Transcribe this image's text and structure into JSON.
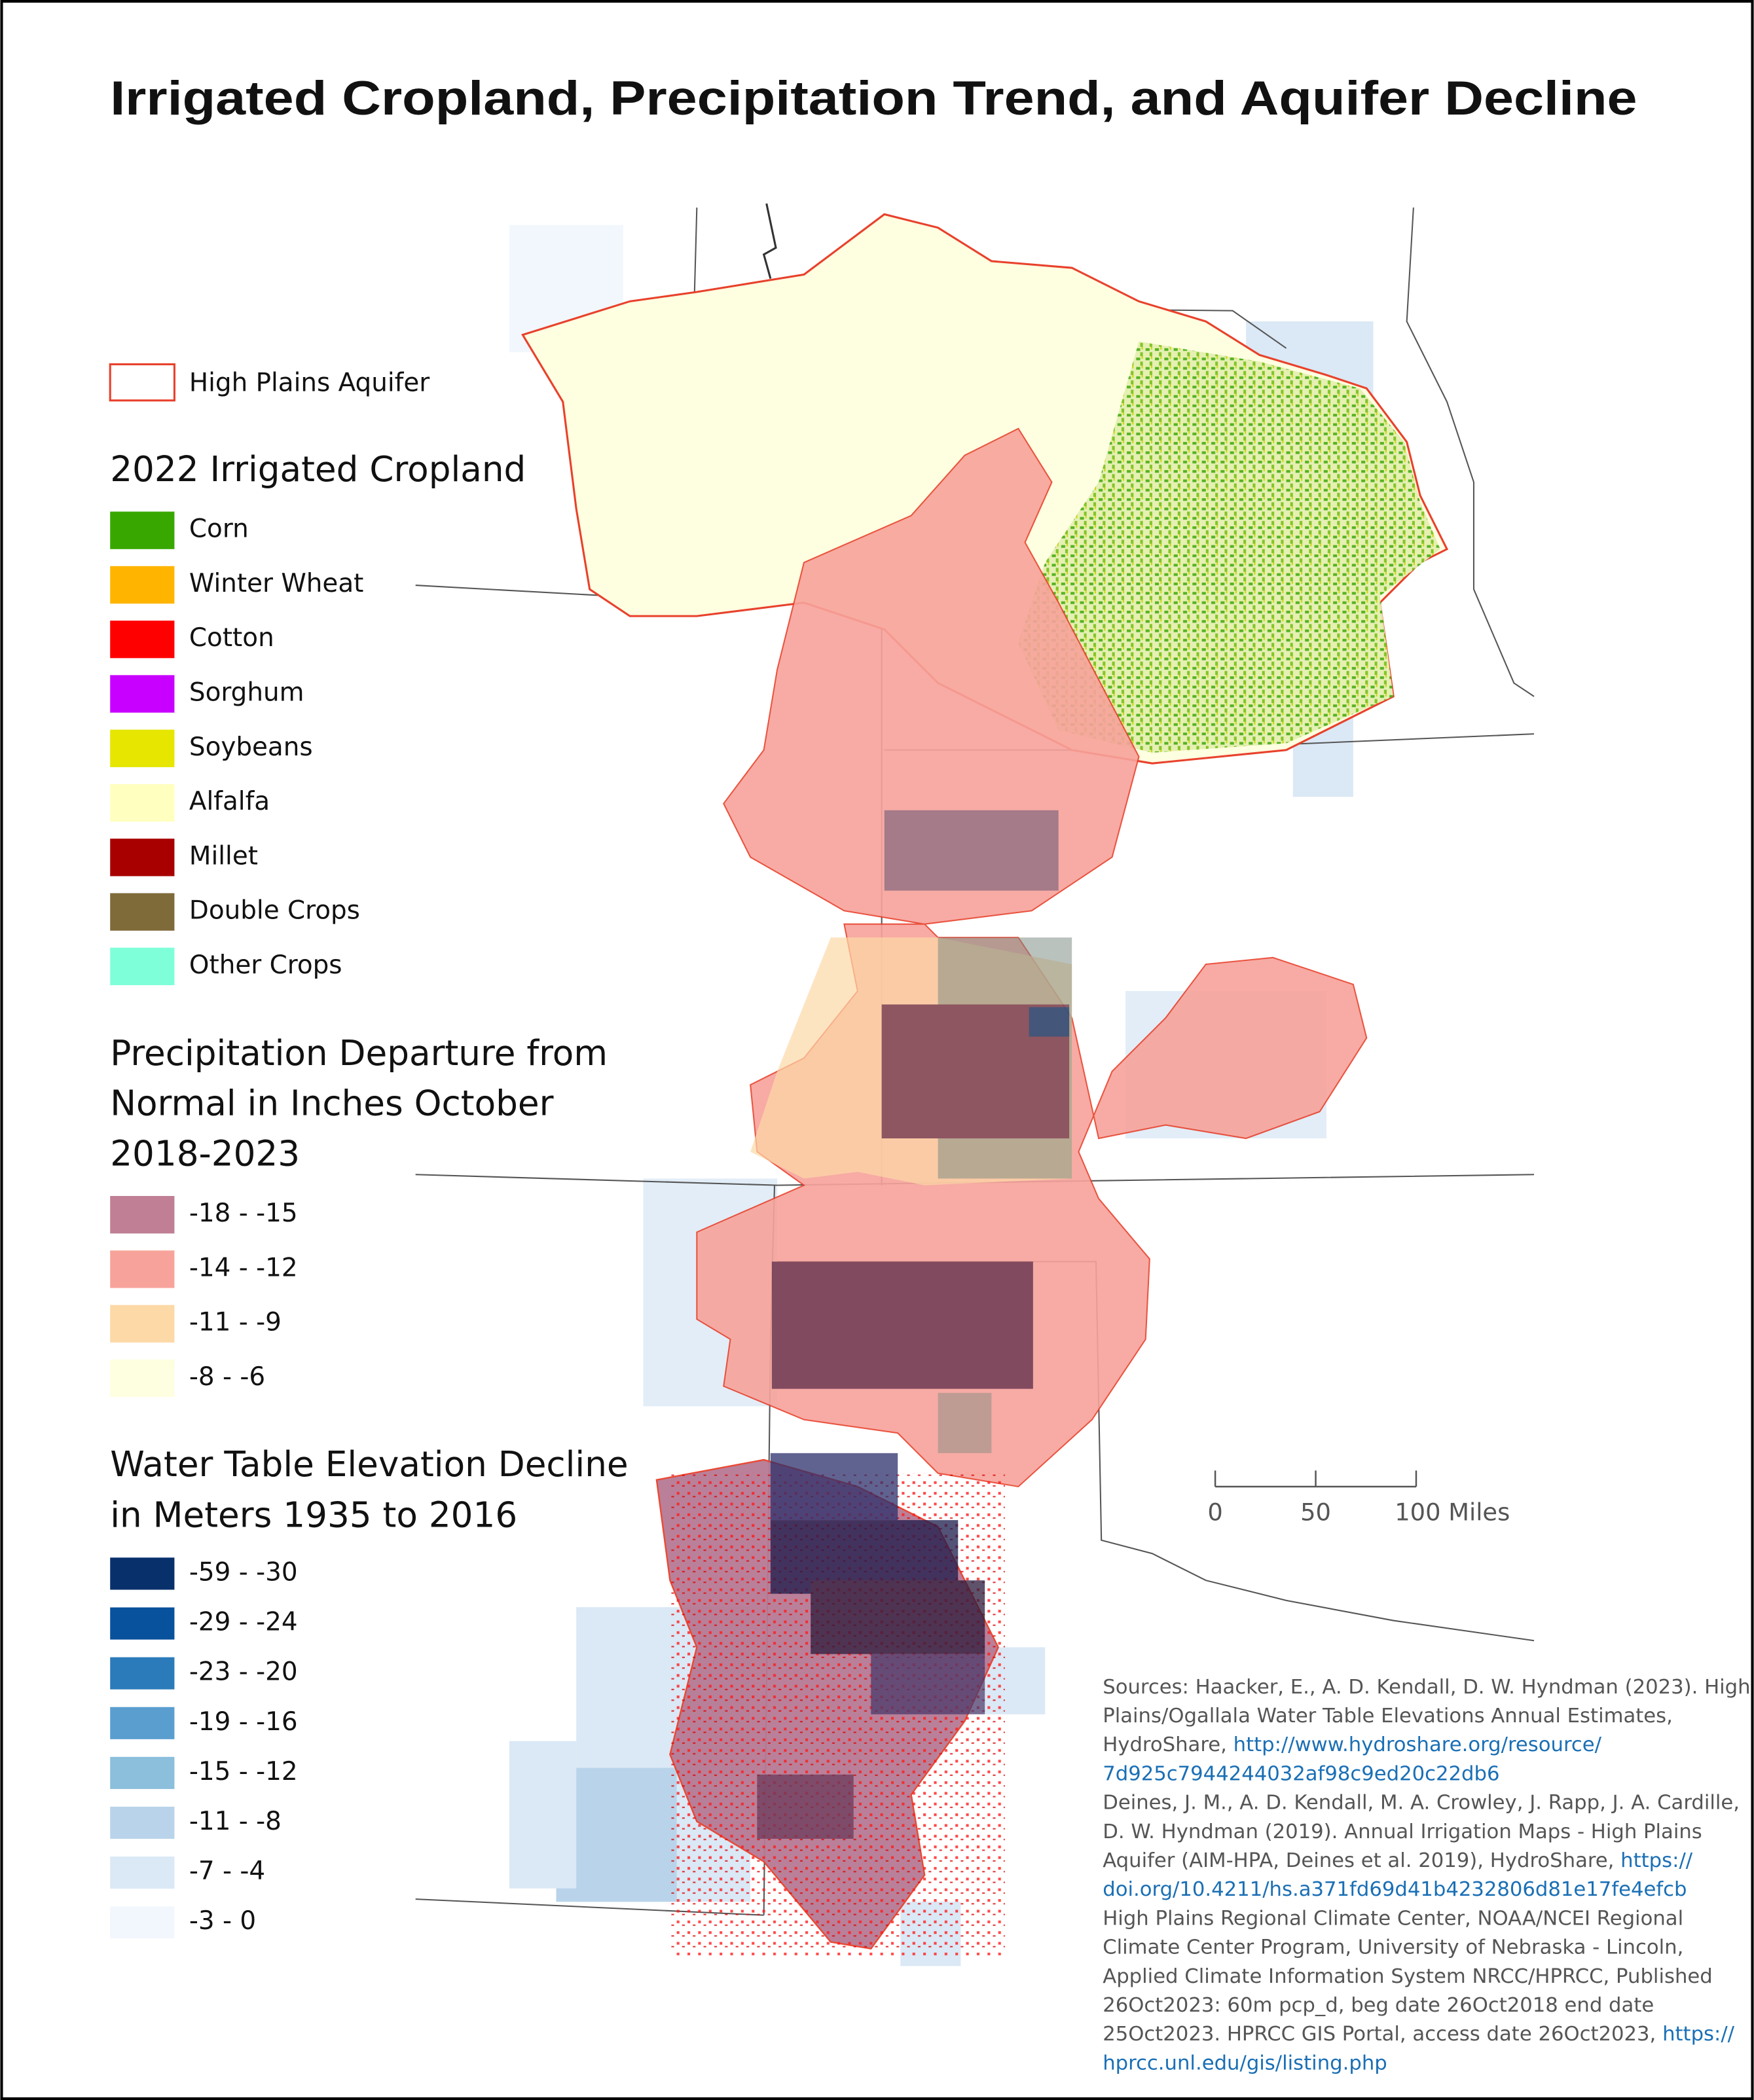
{
  "title": "Irrigated Cropland, Precipitation Trend, and Aquifer Decline",
  "legend": {
    "aquifer": {
      "label": "High Plains Aquifer",
      "color": "#e8412c"
    },
    "cropland": {
      "title": "2022 Irrigated Cropland",
      "items": [
        {
          "label": "Corn",
          "color": "#38a800"
        },
        {
          "label": "Winter Wheat",
          "color": "#ffb400"
        },
        {
          "label": "Cotton",
          "color": "#ff0000"
        },
        {
          "label": "Sorghum",
          "color": "#c800ff"
        },
        {
          "label": "Soybeans",
          "color": "#e6e600"
        },
        {
          "label": "Alfalfa",
          "color": "#ffffc0"
        },
        {
          "label": "Millet",
          "color": "#a80000"
        },
        {
          "label": "Double Crops",
          "color": "#7f6a3a"
        },
        {
          "label": "Other Crops",
          "color": "#7fffd9"
        }
      ]
    },
    "precipitation": {
      "title_lines": [
        "Precipitation Departure from",
        "Normal in Inches October",
        "2018-2023"
      ],
      "items": [
        {
          "label": "-18 - -15",
          "color": "#c07f94"
        },
        {
          "label": "-14 - -12",
          "color": "#f7a39b"
        },
        {
          "label": "-11 - -9",
          "color": "#fcd9a6"
        },
        {
          "label": "-8 - -6",
          "color": "#fefee0"
        }
      ]
    },
    "water_table": {
      "title_lines": [
        "Water Table Elevation Decline",
        "in Meters 1935 to 2016"
      ],
      "items": [
        {
          "label": "-59 - -30",
          "color": "#08306b"
        },
        {
          "label": "-29 - -24",
          "color": "#08519c"
        },
        {
          "label": "-23 - -20",
          "color": "#2b7bba"
        },
        {
          "label": "-19 - -16",
          "color": "#5a9ecf"
        },
        {
          "label": "-15 - -12",
          "color": "#8bbfdc"
        },
        {
          "label": "-11 - -8",
          "color": "#b9d4ea"
        },
        {
          "label": "-7 - -4",
          "color": "#dbe8f5"
        },
        {
          "label": "-3 - 0",
          "color": "#f2f7fd"
        }
      ]
    }
  },
  "scale_bar": {
    "labels": [
      "0",
      "50",
      "100 Miles"
    ]
  },
  "sources": {
    "lines": [
      [
        {
          "text": "Sources: Haacker, E., A. D. Kendall, D. W. Hyndman (2023). High"
        }
      ],
      [
        {
          "text": "Plains/Ogallala Water Table Elevations Annual Estimates,"
        }
      ],
      [
        {
          "text": "HydroShare, "
        },
        {
          "link": "http://www.hydroshare.org/resource/"
        }
      ],
      [
        {
          "link": "7d925c7944244032af98c9ed20c22db6"
        }
      ],
      [
        {
          "text": "Deines, J. M., A. D. Kendall, M. A. Crowley, J. Rapp, J. A. Cardille,"
        }
      ],
      [
        {
          "text": "D. W. Hyndman (2019). Annual Irrigation Maps - High Plains"
        }
      ],
      [
        {
          "text": "Aquifer (AIM-HPA, Deines et al. 2019), HydroShare, "
        },
        {
          "link": "https://"
        }
      ],
      [
        {
          "link": "doi.org/10.4211/hs.a371fd69d41b4232806d81e17fe4efcb"
        }
      ],
      [
        {
          "text": "High Plains Regional Climate Center, NOAA/NCEI Regional"
        }
      ],
      [
        {
          "text": "Climate Center Program, University of Nebraska - Lincoln,"
        }
      ],
      [
        {
          "text": "Applied Climate Information System NRCC/HPRCC, Published"
        }
      ],
      [
        {
          "text": "26Oct2023: 60m pcp_d, beg date 26Oct2018 end date"
        }
      ],
      [
        {
          "text": "25Oct2023. HPRCC GIS Portal, access date 26Oct2023, "
        },
        {
          "link": "https://"
        }
      ],
      [
        {
          "link": "hprcc.unl.edu/gis/listing.php"
        }
      ]
    ]
  }
}
